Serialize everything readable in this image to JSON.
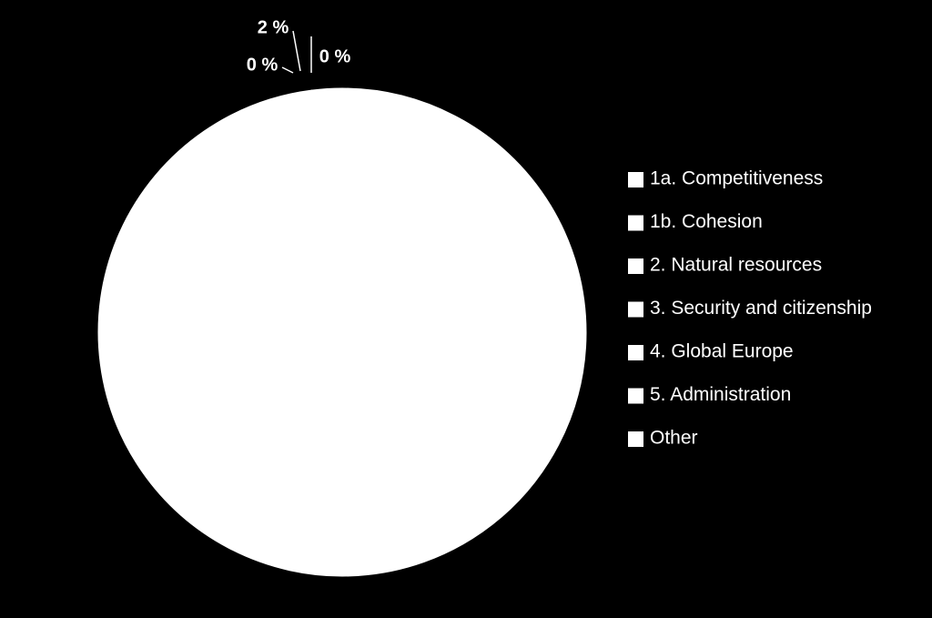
{
  "chart_data": {
    "type": "pie",
    "categories": [
      "1a. Competitiveness",
      "1b. Cohesion",
      "2. Natural resources",
      "3. Security and citizenship",
      "4. Global Europe",
      "5. Administration",
      "Other"
    ],
    "values": [
      0,
      98,
      0,
      0,
      0,
      0,
      2
    ],
    "value_labels": [
      "0 %",
      null,
      null,
      null,
      null,
      "0 %",
      "2 %"
    ],
    "colors": [
      "#ffffff",
      "#ffffff",
      "#ffffff",
      "#ffffff",
      "#ffffff",
      "#ffffff",
      "#ffffff"
    ],
    "legend": "right"
  }
}
